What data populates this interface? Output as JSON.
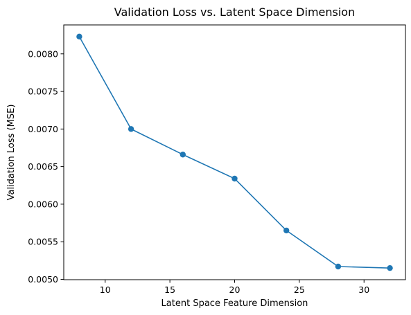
{
  "chart_data": {
    "type": "line",
    "title": "Validation Loss vs. Latent Space Dimension",
    "xlabel": "Latent Space Feature Dimension",
    "ylabel": "Validation Loss (MSE)",
    "x": [
      8,
      12,
      16,
      20,
      24,
      28,
      32
    ],
    "series": [
      {
        "values": [
          0.00823,
          0.007,
          0.00666,
          0.00634,
          0.00565,
          0.00517,
          0.00515
        ]
      }
    ],
    "xlim": [
      6.8,
      33.2
    ],
    "ylim": [
      0.004995,
      0.008385
    ],
    "xticks": [
      10,
      15,
      20,
      25,
      30
    ],
    "xtick_labels": [
      "10",
      "15",
      "20",
      "25",
      "30"
    ],
    "yticks": [
      0.005,
      0.0055,
      0.006,
      0.0065,
      0.007,
      0.0075,
      0.008
    ],
    "ytick_labels": [
      "0.0050",
      "0.0055",
      "0.0060",
      "0.0065",
      "0.0070",
      "0.0075",
      "0.0080"
    ],
    "grid": false,
    "legend": false,
    "markers": true,
    "line_color": "#1f77b4"
  }
}
